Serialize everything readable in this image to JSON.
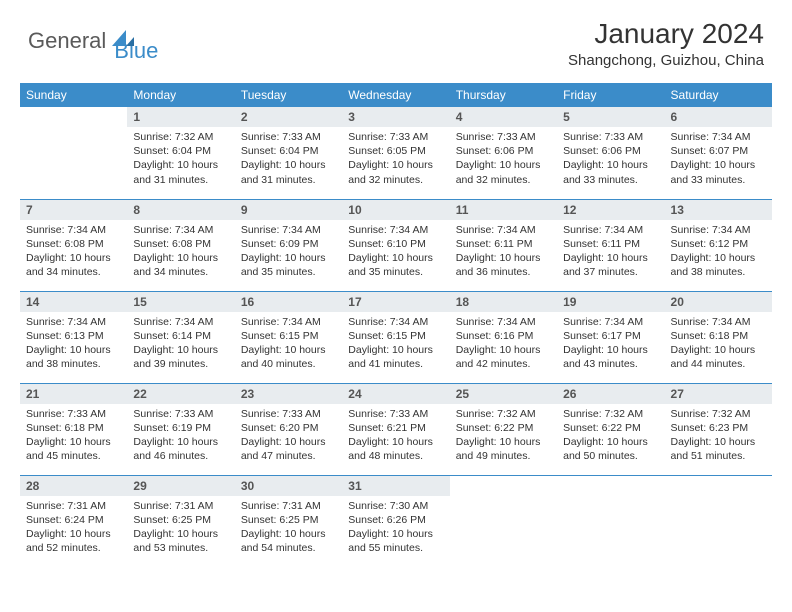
{
  "brand": {
    "part1": "General",
    "part2": "Blue",
    "color1": "#5a5a5a",
    "color2": "#3b8cc9"
  },
  "title": "January 2024",
  "location": "Shangchong, Guizhou, China",
  "colors": {
    "header_bg": "#3b8cc9",
    "header_text": "#ffffff",
    "daynum_bg": "#e8ecef",
    "daynum_text": "#555555",
    "body_text": "#333333",
    "row_divider": "#3b8cc9",
    "page_bg": "#ffffff"
  },
  "typography": {
    "title_fontsize": 28,
    "location_fontsize": 15,
    "weekday_fontsize": 12,
    "daynum_fontsize": 12,
    "info_fontsize": 10.5
  },
  "weekdays": [
    "Sunday",
    "Monday",
    "Tuesday",
    "Wednesday",
    "Thursday",
    "Friday",
    "Saturday"
  ],
  "weeks": [
    [
      {
        "empty": true
      },
      {
        "n": "1",
        "sr": "7:32 AM",
        "ss": "6:04 PM",
        "dl": "10 hours and 31 minutes."
      },
      {
        "n": "2",
        "sr": "7:33 AM",
        "ss": "6:04 PM",
        "dl": "10 hours and 31 minutes."
      },
      {
        "n": "3",
        "sr": "7:33 AM",
        "ss": "6:05 PM",
        "dl": "10 hours and 32 minutes."
      },
      {
        "n": "4",
        "sr": "7:33 AM",
        "ss": "6:06 PM",
        "dl": "10 hours and 32 minutes."
      },
      {
        "n": "5",
        "sr": "7:33 AM",
        "ss": "6:06 PM",
        "dl": "10 hours and 33 minutes."
      },
      {
        "n": "6",
        "sr": "7:34 AM",
        "ss": "6:07 PM",
        "dl": "10 hours and 33 minutes."
      }
    ],
    [
      {
        "n": "7",
        "sr": "7:34 AM",
        "ss": "6:08 PM",
        "dl": "10 hours and 34 minutes."
      },
      {
        "n": "8",
        "sr": "7:34 AM",
        "ss": "6:08 PM",
        "dl": "10 hours and 34 minutes."
      },
      {
        "n": "9",
        "sr": "7:34 AM",
        "ss": "6:09 PM",
        "dl": "10 hours and 35 minutes."
      },
      {
        "n": "10",
        "sr": "7:34 AM",
        "ss": "6:10 PM",
        "dl": "10 hours and 35 minutes."
      },
      {
        "n": "11",
        "sr": "7:34 AM",
        "ss": "6:11 PM",
        "dl": "10 hours and 36 minutes."
      },
      {
        "n": "12",
        "sr": "7:34 AM",
        "ss": "6:11 PM",
        "dl": "10 hours and 37 minutes."
      },
      {
        "n": "13",
        "sr": "7:34 AM",
        "ss": "6:12 PM",
        "dl": "10 hours and 38 minutes."
      }
    ],
    [
      {
        "n": "14",
        "sr": "7:34 AM",
        "ss": "6:13 PM",
        "dl": "10 hours and 38 minutes."
      },
      {
        "n": "15",
        "sr": "7:34 AM",
        "ss": "6:14 PM",
        "dl": "10 hours and 39 minutes."
      },
      {
        "n": "16",
        "sr": "7:34 AM",
        "ss": "6:15 PM",
        "dl": "10 hours and 40 minutes."
      },
      {
        "n": "17",
        "sr": "7:34 AM",
        "ss": "6:15 PM",
        "dl": "10 hours and 41 minutes."
      },
      {
        "n": "18",
        "sr": "7:34 AM",
        "ss": "6:16 PM",
        "dl": "10 hours and 42 minutes."
      },
      {
        "n": "19",
        "sr": "7:34 AM",
        "ss": "6:17 PM",
        "dl": "10 hours and 43 minutes."
      },
      {
        "n": "20",
        "sr": "7:34 AM",
        "ss": "6:18 PM",
        "dl": "10 hours and 44 minutes."
      }
    ],
    [
      {
        "n": "21",
        "sr": "7:33 AM",
        "ss": "6:18 PM",
        "dl": "10 hours and 45 minutes."
      },
      {
        "n": "22",
        "sr": "7:33 AM",
        "ss": "6:19 PM",
        "dl": "10 hours and 46 minutes."
      },
      {
        "n": "23",
        "sr": "7:33 AM",
        "ss": "6:20 PM",
        "dl": "10 hours and 47 minutes."
      },
      {
        "n": "24",
        "sr": "7:33 AM",
        "ss": "6:21 PM",
        "dl": "10 hours and 48 minutes."
      },
      {
        "n": "25",
        "sr": "7:32 AM",
        "ss": "6:22 PM",
        "dl": "10 hours and 49 minutes."
      },
      {
        "n": "26",
        "sr": "7:32 AM",
        "ss": "6:22 PM",
        "dl": "10 hours and 50 minutes."
      },
      {
        "n": "27",
        "sr": "7:32 AM",
        "ss": "6:23 PM",
        "dl": "10 hours and 51 minutes."
      }
    ],
    [
      {
        "n": "28",
        "sr": "7:31 AM",
        "ss": "6:24 PM",
        "dl": "10 hours and 52 minutes."
      },
      {
        "n": "29",
        "sr": "7:31 AM",
        "ss": "6:25 PM",
        "dl": "10 hours and 53 minutes."
      },
      {
        "n": "30",
        "sr": "7:31 AM",
        "ss": "6:25 PM",
        "dl": "10 hours and 54 minutes."
      },
      {
        "n": "31",
        "sr": "7:30 AM",
        "ss": "6:26 PM",
        "dl": "10 hours and 55 minutes."
      },
      {
        "empty": true
      },
      {
        "empty": true
      },
      {
        "empty": true
      }
    ]
  ],
  "labels": {
    "sunrise": "Sunrise:",
    "sunset": "Sunset:",
    "daylight": "Daylight:"
  }
}
